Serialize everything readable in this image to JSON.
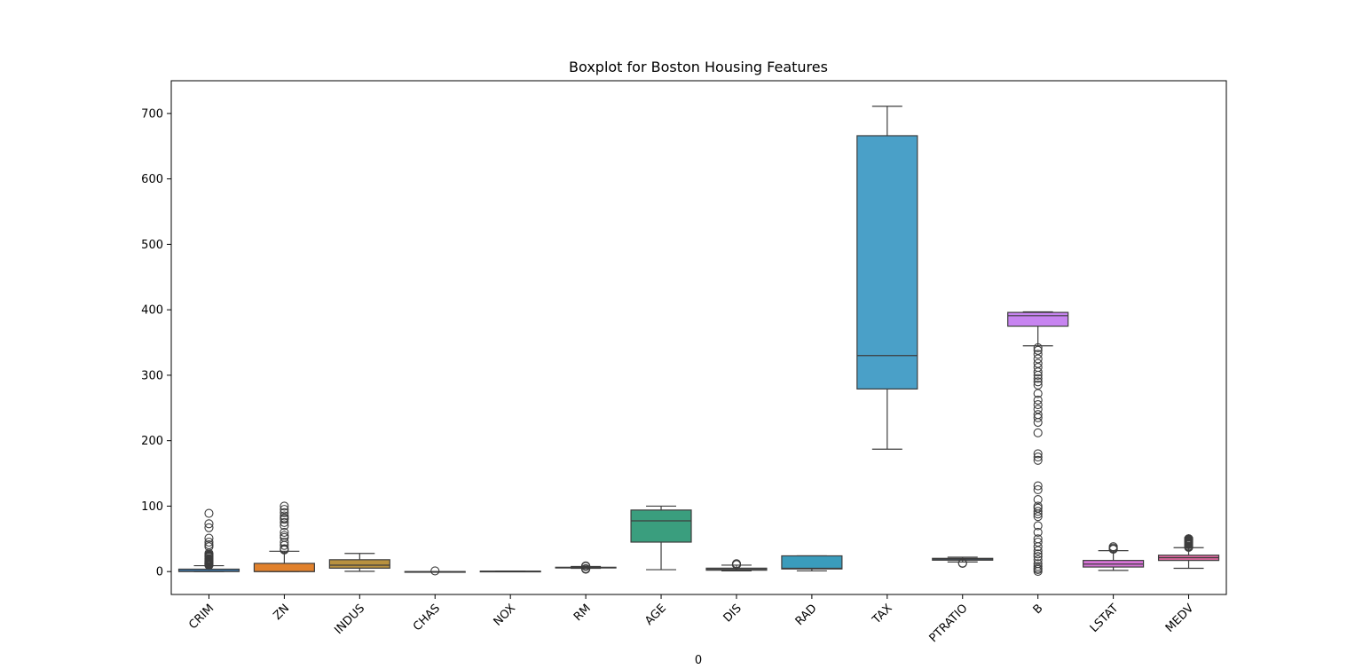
{
  "chart_data": {
    "type": "boxplot",
    "title": "Boxplot for Boston Housing Features",
    "xlabel": "0",
    "ylabel": "",
    "ylim": [
      -35,
      750
    ],
    "yticks": [
      0,
      100,
      200,
      300,
      400,
      500,
      600,
      700
    ],
    "grid": false,
    "legend": "none",
    "categories": [
      "CRIM",
      "ZN",
      "INDUS",
      "CHAS",
      "NOX",
      "RM",
      "AGE",
      "DIS",
      "RAD",
      "TAX",
      "PTRATIO",
      "B",
      "LSTAT",
      "MEDV"
    ],
    "series": [
      {
        "category": "CRIM",
        "color": "#3a75a8",
        "whislo": 0.0,
        "q1": 0.08,
        "med": 0.26,
        "q3": 3.7,
        "whishi": 9.0,
        "fliers": [
          9.5,
          10,
          11,
          11.5,
          12,
          12.5,
          13,
          13.5,
          14,
          15,
          15.5,
          16,
          17,
          18,
          19,
          20,
          22,
          23,
          24,
          25,
          26,
          28,
          38,
          41,
          45,
          51,
          67,
          73,
          89
        ]
      },
      {
        "category": "ZN",
        "color": "#e1812c",
        "whislo": 0.0,
        "q1": 0.0,
        "med": 0.0,
        "q3": 12.5,
        "whishi": 31,
        "fliers": [
          33,
          34,
          35,
          40,
          45,
          52,
          55,
          60,
          70,
          75,
          80,
          82,
          85,
          90,
          95,
          100
        ]
      },
      {
        "category": "INDUS",
        "color": "#b8913f",
        "whislo": 0.46,
        "q1": 5.2,
        "med": 9.7,
        "q3": 18.1,
        "whishi": 27.7,
        "fliers": []
      },
      {
        "category": "CHAS",
        "color": "#3a923a",
        "whislo": 0,
        "q1": 0,
        "med": 0,
        "q3": 0,
        "whishi": 0,
        "fliers": [
          1
        ]
      },
      {
        "category": "NOX",
        "color": "#c03d3e",
        "whislo": 0.385,
        "q1": 0.449,
        "med": 0.538,
        "q3": 0.624,
        "whishi": 0.871,
        "fliers": []
      },
      {
        "category": "RM",
        "color": "#9372b2",
        "whislo": 4.9,
        "q1": 5.9,
        "med": 6.2,
        "q3": 6.6,
        "whishi": 7.7,
        "fliers": [
          3.6,
          4.1,
          4.5,
          8.0,
          8.3,
          8.7
        ]
      },
      {
        "category": "AGE",
        "color": "#3a9e7e",
        "whislo": 2.9,
        "q1": 45,
        "med": 77.5,
        "q3": 94,
        "whishi": 100,
        "fliers": []
      },
      {
        "category": "DIS",
        "color": "#8a8a8a",
        "whislo": 1.13,
        "q1": 2.1,
        "med": 3.2,
        "q3": 5.2,
        "whishi": 9.8,
        "fliers": [
          10.6,
          10.7,
          11.0,
          12.1
        ]
      },
      {
        "category": "RAD",
        "color": "#3a9cbc",
        "whislo": 1,
        "q1": 4,
        "med": 5,
        "q3": 24,
        "whishi": 24,
        "fliers": []
      },
      {
        "category": "TAX",
        "color": "#4aa0c8",
        "whislo": 187,
        "q1": 279,
        "med": 330,
        "q3": 666,
        "whishi": 711,
        "fliers": []
      },
      {
        "category": "PTRATIO",
        "color": "#5b8ab8",
        "whislo": 14.7,
        "q1": 17.4,
        "med": 19.05,
        "q3": 20.2,
        "whishi": 22,
        "fliers": [
          12.6,
          13.0
        ]
      },
      {
        "category": "B",
        "color": "#c784f0",
        "whislo": 345,
        "q1": 375,
        "med": 391,
        "q3": 396,
        "whishi": 396.9,
        "fliers": [
          0.3,
          3,
          5,
          8,
          12,
          18,
          23,
          27,
          32,
          38,
          45,
          50,
          60,
          70,
          84,
          88,
          92,
          97,
          100,
          110,
          125,
          131,
          170,
          175,
          180,
          212,
          228,
          235,
          240,
          248,
          255,
          262,
          272,
          285,
          290,
          295,
          300,
          305,
          312,
          318,
          325,
          332,
          338,
          342
        ]
      },
      {
        "category": "LSTAT",
        "color": "#d873d8",
        "whislo": 1.73,
        "q1": 6.95,
        "med": 11.4,
        "q3": 17.0,
        "whishi": 31.99,
        "fliers": [
          34,
          34.5,
          36,
          37.9
        ]
      },
      {
        "category": "MEDV",
        "color": "#d7669a",
        "whislo": 5,
        "q1": 17,
        "med": 21.2,
        "q3": 25,
        "whishi": 36.5,
        "fliers": [
          37,
          38,
          39,
          41,
          42,
          43,
          44,
          45,
          46,
          47,
          48,
          49,
          50,
          50,
          50,
          50
        ]
      }
    ]
  }
}
